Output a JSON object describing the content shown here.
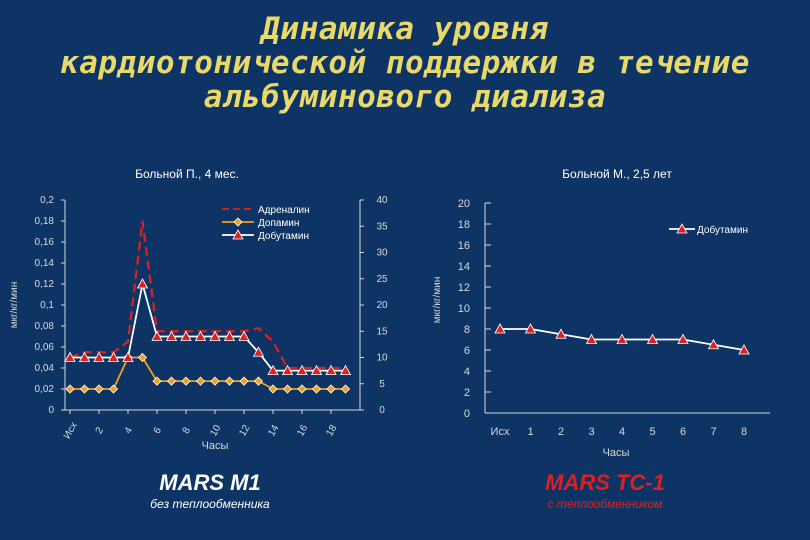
{
  "title_lines": [
    "Динамика уровня",
    "кардиотонической поддержки в течение",
    "альбуминового диализа"
  ],
  "colors": {
    "background": "#0d3464",
    "title": "#e8d96a",
    "adrenalin": "#e02020",
    "dopamin": "#f0a020",
    "dobutamin": "#ffffff",
    "marker_red": "#e02020",
    "caption_left": "#ffffff",
    "caption_right": "#e02020"
  },
  "left_caption": "MARS M1",
  "left_subcaption": "без теплообменника",
  "right_caption": "MARS TC-1",
  "right_subcaption": "с теплообменником",
  "chart_data": [
    {
      "type": "line",
      "title": "Больной П., 4 мес.",
      "xlabel": "Часы",
      "ylabel": "мкг/кг/мин",
      "categories": [
        "Исх",
        "2",
        "4",
        "6",
        "8",
        "10",
        "12",
        "14",
        "16",
        "18"
      ],
      "x": [
        0,
        1,
        2,
        3,
        4,
        5,
        6,
        7,
        8,
        9,
        10,
        11,
        12,
        13,
        14,
        15,
        16,
        17,
        18,
        19
      ],
      "ylim": [
        0,
        0.2
      ],
      "yticks": [
        "0",
        "0,02",
        "0,04",
        "0,06",
        "0,08",
        "0,1",
        "0,12",
        "0,14",
        "0,16",
        "0,18",
        "0,2"
      ],
      "y2lim": [
        0,
        40
      ],
      "y2ticks": [
        "0",
        "5",
        "10",
        "15",
        "20",
        "25",
        "30",
        "35",
        "40"
      ],
      "legend": "top-center",
      "series": [
        {
          "name": "Адреналин",
          "axis": "left",
          "style": "dashed",
          "color": "#e02020",
          "values": [
            0.05,
            0.055,
            0.055,
            0.055,
            0.065,
            0.18,
            0.075,
            0.075,
            0.075,
            0.075,
            0.075,
            0.075,
            0.075,
            0.078,
            0.065,
            0.04,
            0.04,
            0.04,
            0.04,
            0.04
          ]
        },
        {
          "name": "Допамин",
          "axis": "right",
          "style": "solid",
          "marker": "diamond",
          "color": "#f0a020",
          "values": [
            4,
            4,
            4,
            4,
            10,
            10,
            5.5,
            5.5,
            5.5,
            5.5,
            5.5,
            5.5,
            5.5,
            5.5,
            4,
            4,
            4,
            4,
            4,
            4
          ]
        },
        {
          "name": "Добутамин",
          "axis": "right",
          "style": "solid",
          "marker": "triangle",
          "color": "#ffffff",
          "values": [
            10,
            10,
            10,
            10,
            10,
            24,
            14,
            14,
            14,
            14,
            14,
            14,
            14,
            11,
            7.5,
            7.5,
            7.5,
            7.5,
            7.5,
            7.5
          ]
        }
      ]
    },
    {
      "type": "line",
      "title": "Больной М., 2,5 лет",
      "xlabel": "Часы",
      "ylabel": "мкг/кг/мин",
      "categories": [
        "Исх",
        "1",
        "2",
        "3",
        "4",
        "5",
        "6",
        "7",
        "8"
      ],
      "ylim": [
        0,
        20
      ],
      "yticks": [
        "0",
        "2",
        "4",
        "6",
        "8",
        "10",
        "12",
        "14",
        "16",
        "18",
        "20"
      ],
      "legend": "top-right",
      "series": [
        {
          "name": "Добутамин",
          "style": "solid",
          "marker": "triangle",
          "color": "#ffffff",
          "values": [
            8,
            8,
            7.5,
            7,
            7,
            7,
            7,
            6.5,
            6
          ]
        }
      ]
    }
  ]
}
